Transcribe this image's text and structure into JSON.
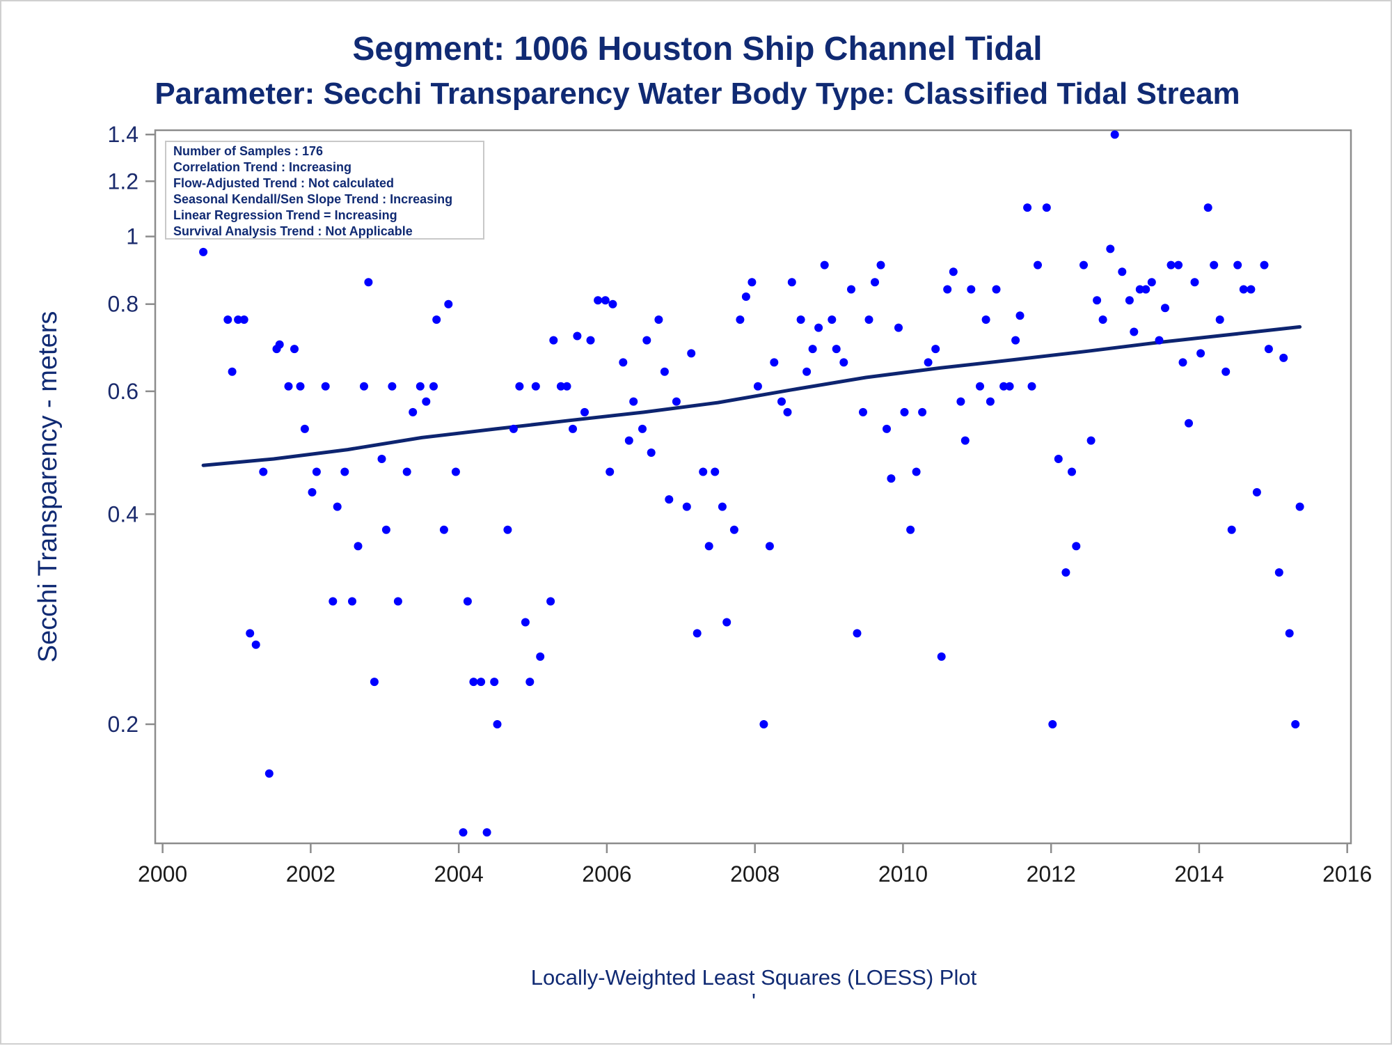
{
  "header": {
    "title": "Segment: 1006  Houston Ship Channel Tidal",
    "subtitle": "Parameter: Secchi Transparency   Water Body Type: Classified Tidal Stream"
  },
  "footnote": "Locally-Weighted Least Squares (LOESS) Plot",
  "footnote_mark": "'",
  "inset": {
    "lines": [
      "Number of Samples : 176",
      "Correlation Trend : Increasing",
      "Flow-Adjusted Trend : Not calculated",
      "Seasonal Kendall/Sen Slope Trend : Increasing",
      "Linear Regression Trend = Increasing",
      "Survival Analysis Trend : Not Applicable"
    ]
  },
  "colors": {
    "title": "#102a73",
    "points": "#0000ff",
    "trend_line": "#0d2470",
    "axis": "#8c8c8c"
  },
  "chart_data": {
    "type": "scatter",
    "title": "Segment: 1006  Houston Ship Channel Tidal",
    "subtitle": "Parameter: Secchi Transparency   Water Body Type: Classified Tidal Stream",
    "xlabel": "",
    "ylabel": "Secchi Transparency - meters",
    "x_scale": "linear",
    "y_scale": "log",
    "xlim": [
      1999.9,
      2016.05
    ],
    "ylim": [
      0.135,
      1.42
    ],
    "xticks": [
      2000,
      2002,
      2004,
      2006,
      2008,
      2010,
      2012,
      2014,
      2016
    ],
    "xtick_labels": [
      "2000",
      "2002",
      "2004",
      "2006",
      "2008",
      "2010",
      "2012",
      "2014",
      "2016"
    ],
    "yticks": [
      0.2,
      0.4,
      0.6,
      0.8,
      1.0,
      1.2,
      1.4
    ],
    "ytick_labels": [
      "0.2",
      "0.4",
      "0.6",
      "0.8",
      "1",
      "1.2",
      "1.4"
    ],
    "grid": false,
    "legend": "none",
    "series": [
      {
        "type": "scatter",
        "points": [
          [
            2000.55,
            0.95
          ],
          [
            2000.88,
            0.76
          ],
          [
            2000.94,
            0.64
          ],
          [
            2001.02,
            0.76
          ],
          [
            2001.1,
            0.76
          ],
          [
            2001.18,
            0.27
          ],
          [
            2001.26,
            0.26
          ],
          [
            2001.36,
            0.46
          ],
          [
            2001.44,
            0.17
          ],
          [
            2001.54,
            0.69
          ],
          [
            2001.58,
            0.7
          ],
          [
            2001.7,
            0.61
          ],
          [
            2001.78,
            0.69
          ],
          [
            2001.86,
            0.61
          ],
          [
            2001.92,
            0.53
          ],
          [
            2002.02,
            0.43
          ],
          [
            2002.08,
            0.46
          ],
          [
            2002.2,
            0.61
          ],
          [
            2002.3,
            0.3
          ],
          [
            2002.36,
            0.41
          ],
          [
            2002.46,
            0.46
          ],
          [
            2002.56,
            0.3
          ],
          [
            2002.64,
            0.36
          ],
          [
            2002.72,
            0.61
          ],
          [
            2002.78,
            0.86
          ],
          [
            2002.86,
            0.23
          ],
          [
            2002.96,
            0.48
          ],
          [
            2003.02,
            0.38
          ],
          [
            2003.1,
            0.61
          ],
          [
            2003.18,
            0.3
          ],
          [
            2003.3,
            0.46
          ],
          [
            2003.38,
            0.56
          ],
          [
            2003.48,
            0.61
          ],
          [
            2003.56,
            0.58
          ],
          [
            2003.66,
            0.61
          ],
          [
            2003.7,
            0.76
          ],
          [
            2003.8,
            0.38
          ],
          [
            2003.86,
            0.8
          ],
          [
            2003.96,
            0.46
          ],
          [
            2004.06,
            0.14
          ],
          [
            2004.12,
            0.3
          ],
          [
            2004.2,
            0.23
          ],
          [
            2004.3,
            0.23
          ],
          [
            2004.38,
            0.14
          ],
          [
            2004.48,
            0.23
          ],
          [
            2004.52,
            0.2
          ],
          [
            2004.66,
            0.38
          ],
          [
            2004.74,
            0.53
          ],
          [
            2004.82,
            0.61
          ],
          [
            2004.9,
            0.28
          ],
          [
            2004.96,
            0.23
          ],
          [
            2005.04,
            0.61
          ],
          [
            2005.1,
            0.25
          ],
          [
            2005.24,
            0.3
          ],
          [
            2005.28,
            0.71
          ],
          [
            2005.38,
            0.61
          ],
          [
            2005.46,
            0.61
          ],
          [
            2005.54,
            0.53
          ],
          [
            2005.6,
            0.72
          ],
          [
            2005.7,
            0.56
          ],
          [
            2005.78,
            0.71
          ],
          [
            2005.88,
            0.81
          ],
          [
            2005.98,
            0.81
          ],
          [
            2006.04,
            0.46
          ],
          [
            2006.08,
            0.8
          ],
          [
            2006.22,
            0.66
          ],
          [
            2006.3,
            0.51
          ],
          [
            2006.36,
            0.58
          ],
          [
            2006.48,
            0.53
          ],
          [
            2006.54,
            0.71
          ],
          [
            2006.6,
            0.49
          ],
          [
            2006.7,
            0.76
          ],
          [
            2006.78,
            0.64
          ],
          [
            2006.84,
            0.42
          ],
          [
            2006.94,
            0.58
          ],
          [
            2007.08,
            0.41
          ],
          [
            2007.14,
            0.68
          ],
          [
            2007.22,
            0.27
          ],
          [
            2007.3,
            0.46
          ],
          [
            2007.38,
            0.36
          ],
          [
            2007.46,
            0.46
          ],
          [
            2007.56,
            0.41
          ],
          [
            2007.62,
            0.28
          ],
          [
            2007.72,
            0.38
          ],
          [
            2007.8,
            0.76
          ],
          [
            2007.88,
            0.82
          ],
          [
            2007.96,
            0.86
          ],
          [
            2008.04,
            0.61
          ],
          [
            2008.12,
            0.2
          ],
          [
            2008.2,
            0.36
          ],
          [
            2008.26,
            0.66
          ],
          [
            2008.36,
            0.58
          ],
          [
            2008.44,
            0.56
          ],
          [
            2008.5,
            0.86
          ],
          [
            2008.62,
            0.76
          ],
          [
            2008.7,
            0.64
          ],
          [
            2008.78,
            0.69
          ],
          [
            2008.86,
            0.74
          ],
          [
            2008.94,
            0.91
          ],
          [
            2009.04,
            0.76
          ],
          [
            2009.1,
            0.69
          ],
          [
            2009.2,
            0.66
          ],
          [
            2009.3,
            0.84
          ],
          [
            2009.38,
            0.27
          ],
          [
            2009.46,
            0.56
          ],
          [
            2009.54,
            0.76
          ],
          [
            2009.62,
            0.86
          ],
          [
            2009.7,
            0.91
          ],
          [
            2009.78,
            0.53
          ],
          [
            2009.84,
            0.45
          ],
          [
            2009.94,
            0.74
          ],
          [
            2010.02,
            0.56
          ],
          [
            2010.1,
            0.38
          ],
          [
            2010.18,
            0.46
          ],
          [
            2010.26,
            0.56
          ],
          [
            2010.34,
            0.66
          ],
          [
            2010.44,
            0.69
          ],
          [
            2010.52,
            0.25
          ],
          [
            2010.6,
            0.84
          ],
          [
            2010.68,
            0.89
          ],
          [
            2010.78,
            0.58
          ],
          [
            2010.84,
            0.51
          ],
          [
            2010.92,
            0.84
          ],
          [
            2011.04,
            0.61
          ],
          [
            2011.12,
            0.76
          ],
          [
            2011.18,
            0.58
          ],
          [
            2011.26,
            0.84
          ],
          [
            2011.36,
            0.61
          ],
          [
            2011.44,
            0.61
          ],
          [
            2011.52,
            0.71
          ],
          [
            2011.58,
            0.77
          ],
          [
            2011.68,
            1.1
          ],
          [
            2011.74,
            0.61
          ],
          [
            2011.82,
            0.91
          ],
          [
            2011.94,
            1.1
          ],
          [
            2012.02,
            0.2
          ],
          [
            2012.1,
            0.48
          ],
          [
            2012.2,
            0.33
          ],
          [
            2012.28,
            0.46
          ],
          [
            2012.34,
            0.36
          ],
          [
            2012.44,
            0.91
          ],
          [
            2012.54,
            0.51
          ],
          [
            2012.62,
            0.81
          ],
          [
            2012.7,
            0.76
          ],
          [
            2012.8,
            0.96
          ],
          [
            2012.86,
            1.4
          ],
          [
            2012.96,
            0.89
          ],
          [
            2013.06,
            0.81
          ],
          [
            2013.12,
            0.73
          ],
          [
            2013.2,
            0.84
          ],
          [
            2013.28,
            0.84
          ],
          [
            2013.36,
            0.86
          ],
          [
            2013.46,
            0.71
          ],
          [
            2013.54,
            0.79
          ],
          [
            2013.62,
            0.91
          ],
          [
            2013.72,
            0.91
          ],
          [
            2013.78,
            0.66
          ],
          [
            2013.86,
            0.54
          ],
          [
            2013.94,
            0.86
          ],
          [
            2014.02,
            0.68
          ],
          [
            2014.12,
            1.1
          ],
          [
            2014.2,
            0.91
          ],
          [
            2014.28,
            0.76
          ],
          [
            2014.36,
            0.64
          ],
          [
            2014.44,
            0.38
          ],
          [
            2014.52,
            0.91
          ],
          [
            2014.6,
            0.84
          ],
          [
            2014.7,
            0.84
          ],
          [
            2014.78,
            0.43
          ],
          [
            2014.88,
            0.91
          ],
          [
            2014.94,
            0.69
          ],
          [
            2015.08,
            0.33
          ],
          [
            2015.14,
            0.67
          ],
          [
            2015.22,
            0.27
          ],
          [
            2015.3,
            0.2
          ],
          [
            2015.36,
            0.41
          ]
        ]
      },
      {
        "type": "line",
        "points": [
          [
            2000.55,
            0.47
          ],
          [
            2001.5,
            0.48
          ],
          [
            2002.5,
            0.495
          ],
          [
            2003.5,
            0.515
          ],
          [
            2004.5,
            0.53
          ],
          [
            2005.5,
            0.545
          ],
          [
            2006.5,
            0.56
          ],
          [
            2007.5,
            0.578
          ],
          [
            2008.5,
            0.603
          ],
          [
            2009.5,
            0.628
          ],
          [
            2010.5,
            0.648
          ],
          [
            2011.5,
            0.666
          ],
          [
            2012.5,
            0.685
          ],
          [
            2013.5,
            0.706
          ],
          [
            2014.5,
            0.725
          ],
          [
            2015.36,
            0.742
          ]
        ]
      }
    ]
  }
}
